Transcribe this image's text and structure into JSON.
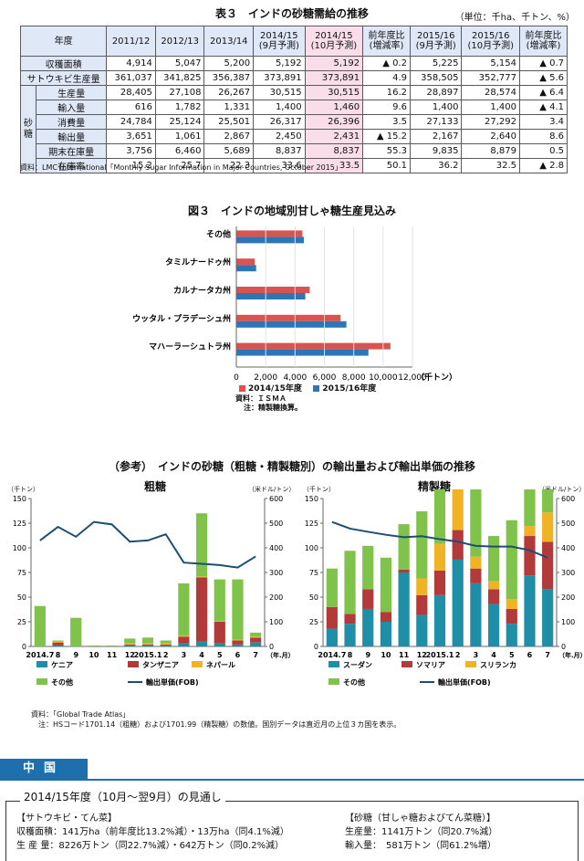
{
  "table3": {
    "title": "表３　インドの砂糖需給の推移",
    "unit": "（単位：千ha、千トン、%）",
    "col_header_first": "年度",
    "columns": [
      "2011/12",
      "2012/13",
      "2013/14",
      "2014/15\n(9月予測)",
      "2014/15\n(10月予測)",
      "前年度比\n(増減率)",
      "2015/16\n(9月予測)",
      "2015/16\n(10月予測)",
      "前年度比\n(増減率)"
    ],
    "sugar_group_label": "砂\n糖",
    "rows": [
      {
        "label": "収穫面積",
        "values": [
          "4,914",
          "5,047",
          "5,200",
          "5,192",
          "5,192",
          "▲ 0.2",
          "5,225",
          "5,154",
          "▲ 0.7"
        ]
      },
      {
        "label": "サトウキビ生産量",
        "values": [
          "361,037",
          "341,825",
          "356,387",
          "373,891",
          "373,891",
          "4.9",
          "358,505",
          "352,777",
          "▲ 5.6"
        ]
      },
      {
        "label": "生産量",
        "values": [
          "28,405",
          "27,108",
          "26,267",
          "30,515",
          "30,515",
          "16.2",
          "28,897",
          "28,574",
          "▲ 6.4"
        ]
      },
      {
        "label": "輸入量",
        "values": [
          "616",
          "1,782",
          "1,331",
          "1,400",
          "1,460",
          "9.6",
          "1,400",
          "1,400",
          "▲ 4.1"
        ]
      },
      {
        "label": "消費量",
        "values": [
          "24,784",
          "25,124",
          "25,501",
          "26,317",
          "26,396",
          "3.5",
          "27,133",
          "27,292",
          "3.4"
        ]
      },
      {
        "label": "輸出量",
        "values": [
          "3,651",
          "1,061",
          "2,867",
          "2,450",
          "2,431",
          "▲ 15.2",
          "2,167",
          "2,640",
          "8.6"
        ]
      },
      {
        "label": "期末在庫量",
        "values": [
          "3,756",
          "6,460",
          "5,689",
          "8,837",
          "8,837",
          "55.3",
          "9,835",
          "8,879",
          "0.5"
        ]
      },
      {
        "label": "在庫率",
        "values": [
          "15.2",
          "25.7",
          "22.3",
          "33.6",
          "33.5",
          "50.1",
          "36.2",
          "32.5",
          "▲ 2.8"
        ]
      }
    ],
    "source": "資料：LMC International「Monthly Sugar Information in Major Countries, October 2015」"
  },
  "figure3": {
    "title": "図３　インドの地域別甘しゃ糖生産見込み",
    "unit_label": "（千トン）",
    "note_source": "資料：ＩＳＭＡ",
    "note_detail": "注：精製糖換算。",
    "colors": {
      "s2014": "#d9534f",
      "s2015": "#2e75b6"
    },
    "chart_data": {
      "type": "bar",
      "orientation": "horizontal",
      "categories": [
        "その他",
        "タミルナードゥ州",
        "カルナータカ州",
        "ウッタル・プラデーシュ州",
        "マハーラーシュトラ州"
      ],
      "series": [
        {
          "name": "2014/15年度",
          "values": [
            4500,
            1250,
            5000,
            7100,
            10500
          ]
        },
        {
          "name": "2015/16年度",
          "values": [
            4600,
            1350,
            4700,
            7500,
            9000
          ]
        }
      ],
      "xlim": [
        0,
        12000
      ],
      "xticks": [
        "0",
        "2,000",
        "4,000",
        "6,000",
        "8,000",
        "10,000",
        "12,000"
      ]
    }
  },
  "reference": {
    "title": "（参考）　インドの砂糖（粗糖・精製糖別）の輸出量および輸出単価の推移",
    "left_unit": "（千トン）",
    "right_unit": "（米ドル/トン）",
    "month_unit": "（年.月）",
    "months": [
      "2014.7",
      "8",
      "9",
      "10",
      "11",
      "12",
      "2015.1",
      "2",
      "3",
      "4",
      "5",
      "6",
      "7"
    ],
    "left_ticks": [
      "0",
      "25",
      "50",
      "75",
      "100",
      "125",
      "150"
    ],
    "right_ticks": [
      "0",
      "100",
      "200",
      "300",
      "400",
      "500",
      "600"
    ],
    "raw": {
      "title": "粗糖",
      "chart_data": {
        "type": "bar",
        "stacked": true,
        "ylim": [
          0,
          150
        ],
        "y2lim": [
          0,
          600
        ],
        "series": [
          {
            "name": "ケニア",
            "color": "#1f8fa8",
            "values": [
              0,
              1,
              0,
              0,
              0,
              1,
              1,
              1,
              3,
              5,
              3,
              2,
              4
            ]
          },
          {
            "name": "タンザニア",
            "color": "#b23a3a",
            "values": [
              0,
              3,
              0,
              0,
              0,
              1,
              1,
              1,
              7,
              65,
              22,
              4,
              5
            ]
          },
          {
            "name": "ネパール",
            "color": "#f0b323",
            "values": [
              0,
              1,
              0,
              0,
              0,
              1,
              1,
              1,
              1,
              1,
              1,
              1,
              1
            ]
          },
          {
            "name": "その他",
            "color": "#7fc34a",
            "values": [
              41,
              1,
              29,
              1,
              1,
              5,
              6,
              3,
              53,
              64,
              42,
              61,
              4
            ]
          },
          {
            "name": "輸出単価(FOB)",
            "type": "line",
            "axis": "right",
            "color": "#1c4e73",
            "values": [
              430,
              485,
              445,
              505,
              495,
              425,
              430,
              455,
              340,
              335,
              330,
              320,
              365
            ]
          }
        ]
      }
    },
    "refined": {
      "title": "精製糖",
      "chart_data": {
        "type": "bar",
        "stacked": true,
        "ylim": [
          0,
          150
        ],
        "y2lim": [
          0,
          600
        ],
        "series": [
          {
            "name": "スーダン",
            "color": "#1f8fa8",
            "values": [
              18,
              23,
              38,
              25,
              75,
              32,
              52,
              88,
              64,
              43,
              23,
              72,
              58
            ]
          },
          {
            "name": "ソマリア",
            "color": "#b23a3a",
            "values": [
              22,
              10,
              20,
              10,
              3,
              20,
              25,
              30,
              15,
              15,
              15,
              40,
              48
            ]
          },
          {
            "name": "スリランカ",
            "color": "#f0b323",
            "values": [
              0,
              0,
              0,
              0,
              0,
              17,
              27,
              42,
              12,
              8,
              10,
              10,
              30
            ]
          },
          {
            "name": "その他",
            "color": "#7fc34a",
            "values": [
              39,
              64,
              44,
              55,
              46,
              68,
              58,
              33,
              102,
              46,
              80,
              65,
              100
            ]
          },
          {
            "name": "輸出単価(FOB)",
            "type": "line",
            "axis": "right",
            "color": "#1c4e73",
            "values": [
              505,
              478,
              465,
              453,
              443,
              447,
              435,
              425,
              408,
              405,
              405,
              390,
              360
            ]
          }
        ]
      }
    },
    "source": "資料：「Global Trade Atlas」",
    "note": "注：HSコード1701.14（粗糖）および1701.99（精製糖）の数値。国別データは直近月の上位３カ国を表示。"
  },
  "china": {
    "section_title": "中国",
    "outlook": "2014/15年度（10月～翌9月）の見通し",
    "left_heading": "【サトウキビ・てん菜】",
    "left_line1": "収穫面積：141万ha（前年度比13.2%減）・13万ha（同4.1%減）",
    "left_line2": "生 産 量：8226万トン（同22.7%減）・642万トン（同0.2%減）",
    "right_heading": "【砂糖（甘しゃ糖およびてん菜糖）】",
    "right_line1": "生産量：1141万トン（同20.7%減）",
    "right_line2": "輸入量：　581万トン（同61.2%増）"
  }
}
